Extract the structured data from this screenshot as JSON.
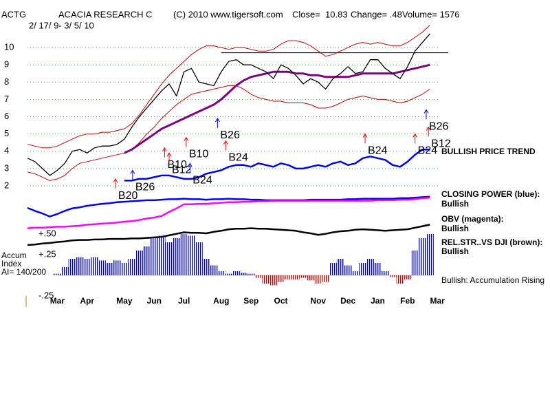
{
  "chart_data": {
    "type": "line",
    "header": {
      "symbol": "ACTG",
      "name": "ACACIA RESEARCH C",
      "copyright": "(C) 2010 www.tigersoft.com",
      "close": "Close=  10.83",
      "change": "Change= .48",
      "volume": "Volume= 1576",
      "dates": "2/ 17/ 9- 3/ 5/ 10"
    },
    "categories": [
      null,
      null,
      null,
      null,
      "Mar",
      null,
      null,
      null,
      "Apr",
      null,
      null,
      null,
      null,
      "May",
      null,
      null,
      null,
      "Jun",
      null,
      null,
      null,
      "Jul",
      null,
      null,
      null,
      null,
      "Aug",
      null,
      null,
      null,
      "Sep",
      null,
      null,
      null,
      "Oct",
      null,
      null,
      null,
      null,
      "Nov",
      null,
      null,
      null,
      "Dec",
      null,
      null,
      null,
      "Jan",
      null,
      null,
      null,
      "Feb",
      null,
      null,
      null,
      "Mar"
    ],
    "ylim": [
      1.6,
      11.4
    ],
    "yticks": [
      2,
      3,
      4,
      5,
      6,
      7,
      8,
      9,
      10
    ],
    "grid": true,
    "resistance": 9.7,
    "series": [
      {
        "color": "#cc0000",
        "width": 1,
        "values": [
          4.4,
          4.3,
          4.2,
          4.2,
          4.3,
          4.5,
          4.7,
          4.9,
          5.0,
          5.0,
          5.1,
          5.1,
          5.2,
          5.3,
          5.6,
          6.1,
          6.7,
          7.3,
          7.9,
          8.4,
          8.8,
          9.2,
          9.6,
          9.9,
          10.1,
          10.1,
          10.0,
          9.9,
          10.0,
          10.0,
          9.9,
          9.8,
          9.8,
          9.9,
          10.2,
          10.4,
          10.4,
          10.3,
          10.1,
          9.8,
          9.5,
          9.6,
          9.8,
          10.0,
          10.2,
          10.3,
          10.2,
          10.3,
          10.2,
          10.1,
          10.1,
          10.3,
          10.6,
          10.9,
          11.3,
          null
        ]
      },
      {
        "color": "#cc0000",
        "width": 1,
        "values": [
          2.8,
          2.7,
          2.5,
          2.3,
          2.4,
          2.6,
          3.0,
          3.3,
          3.4,
          3.5,
          3.6,
          3.7,
          3.8,
          3.9,
          4.1,
          4.5,
          5.0,
          5.4,
          5.9,
          6.3,
          6.7,
          7.0,
          7.3,
          7.4,
          7.5,
          7.6,
          7.7,
          7.8,
          7.8,
          7.6,
          7.3,
          7.1,
          7.0,
          6.9,
          6.9,
          6.8,
          6.8,
          6.8,
          6.7,
          6.5,
          6.5,
          6.6,
          6.8,
          7.0,
          7.1,
          7.2,
          7.1,
          7.0,
          7.0,
          6.9,
          6.8,
          6.9,
          7.1,
          7.3,
          7.6,
          null
        ]
      },
      {
        "color": "#800080",
        "width": 3,
        "values": [
          null,
          null,
          null,
          null,
          null,
          null,
          null,
          null,
          null,
          null,
          null,
          null,
          null,
          3.9,
          4.1,
          4.4,
          4.7,
          5.0,
          5.3,
          5.5,
          5.7,
          5.9,
          6.1,
          6.3,
          6.5,
          6.7,
          7.0,
          7.4,
          7.8,
          8.1,
          8.3,
          8.4,
          8.5,
          8.6,
          8.6,
          8.6,
          8.5,
          8.5,
          8.4,
          8.4,
          8.3,
          8.3,
          8.3,
          8.3,
          8.4,
          8.5,
          8.5,
          8.5,
          8.5,
          8.5,
          8.6,
          8.7,
          8.8,
          8.9,
          9.0,
          null
        ]
      },
      {
        "color": "#0000ff",
        "width": 2.5,
        "values": [
          null,
          null,
          null,
          null,
          null,
          null,
          null,
          null,
          null,
          null,
          null,
          null,
          null,
          2.3,
          2.3,
          2.4,
          2.4,
          2.5,
          2.6,
          2.6,
          2.5,
          2.4,
          2.4,
          2.5,
          2.7,
          2.8,
          2.9,
          3.1,
          3.2,
          3.2,
          3.1,
          3.3,
          3.2,
          3.1,
          3.3,
          3.2,
          3.0,
          3.0,
          3.1,
          3.2,
          3.1,
          3.3,
          3.4,
          3.2,
          3.3,
          3.6,
          3.7,
          3.6,
          3.5,
          3.2,
          3.1,
          3.4,
          3.8,
          4.1,
          4.1,
          null
        ]
      },
      {
        "color": "#000000",
        "width": 1.3,
        "values": [
          3.6,
          3.4,
          3.0,
          2.6,
          2.9,
          3.3,
          4.0,
          4.1,
          3.9,
          4.2,
          4.3,
          4.3,
          4.4,
          4.7,
          5.4,
          6.0,
          6.5,
          7.0,
          7.5,
          7.9,
          7.2,
          8.6,
          8.8,
          8.0,
          7.9,
          7.8,
          8.6,
          9.2,
          9.3,
          9.0,
          9.0,
          8.8,
          8.6,
          8.2,
          9.0,
          8.8,
          8.4,
          7.9,
          8.2,
          8.0,
          7.6,
          8.2,
          8.5,
          8.9,
          8.5,
          8.6,
          9.3,
          9.3,
          8.8,
          8.5,
          8.2,
          8.9,
          9.8,
          10.3,
          10.8,
          null
        ]
      }
    ],
    "signals": [
      {
        "label": "B20",
        "week": 11.8,
        "price": 2.4,
        "color": "#ff0000"
      },
      {
        "label": "B26",
        "week": 14.1,
        "price": 2.9,
        "color": "#0000ff"
      },
      {
        "label": "B10",
        "week": 18.4,
        "price": 4.2,
        "color": "#ff0000"
      },
      {
        "label": "B12",
        "week": 19.0,
        "price": 3.9,
        "color": "#ff0000"
      },
      {
        "label": "B10",
        "week": 21.3,
        "price": 4.8,
        "color": "#ff0000"
      },
      {
        "label": "B24",
        "week": 21.8,
        "price": 3.3,
        "color": "#0000ff"
      },
      {
        "label": "B26",
        "week": 25.5,
        "price": 5.9,
        "color": "#0000ff"
      },
      {
        "label": "B24",
        "week": 26.6,
        "price": 4.6,
        "color": "#ff0000"
      },
      {
        "label": "B24",
        "week": 45.3,
        "price": 5.0,
        "color": "#ff0000"
      },
      {
        "label": "B24",
        "week": 52.0,
        "price": 5.0,
        "color": "#ff0000"
      },
      {
        "label": "B26",
        "week": 53.5,
        "price": 6.4,
        "color": "#0000ff"
      },
      {
        "label": "B12",
        "week": 53.8,
        "price": 5.4,
        "color": "#ff0000"
      }
    ],
    "annotations": [
      "BULLISH PRICE TREND",
      "CLOSING POWER (blue):",
      "Bullish",
      "OBV (magenta):",
      "Bullish",
      "REL.STR..VS DJI (brown):",
      "Bullish",
      "Bullish: Accumulation Rising"
    ],
    "indicators": {
      "ylim": [
        0,
        100
      ],
      "series": [
        {
          "color": "#0000ff",
          "width": 2.5,
          "values": [
            73,
            67,
            62,
            56,
            61,
            67,
            72,
            74,
            77,
            79,
            81,
            82,
            84,
            85,
            86,
            87,
            88,
            88,
            89,
            90,
            90,
            91,
            90,
            90,
            89,
            90,
            90,
            91,
            90,
            90,
            89,
            89,
            88,
            88,
            88,
            88,
            88,
            88,
            89,
            89,
            89,
            89,
            89,
            90,
            90,
            91,
            91,
            91,
            91,
            91,
            92,
            92,
            93,
            94,
            95,
            null
          ]
        },
        {
          "color": "#ff00ff",
          "width": 2.5,
          "values": [
            33,
            34,
            34,
            35,
            36,
            36,
            37,
            38,
            40,
            41,
            42,
            43,
            44,
            46,
            47,
            49,
            52,
            54,
            57,
            65,
            72,
            80,
            80,
            81,
            81,
            82,
            83,
            84,
            84,
            85,
            85,
            86,
            86,
            87,
            87,
            87,
            87,
            87,
            87,
            87,
            87,
            87,
            87,
            87,
            87,
            87,
            87,
            88,
            88,
            88,
            89,
            89,
            90,
            92,
            93,
            null
          ]
        },
        {
          "color": "#000000",
          "width": 2.5,
          "values": [
            0,
            1,
            3,
            4,
            6,
            7,
            9,
            10,
            10,
            11,
            11,
            12,
            12,
            12,
            13,
            13,
            14,
            15,
            16,
            19,
            22,
            25,
            24,
            24,
            23,
            26,
            28,
            31,
            32,
            32,
            33,
            32,
            32,
            31,
            30,
            29,
            28,
            25,
            23,
            20,
            22,
            25,
            27,
            28,
            30,
            31,
            30,
            29,
            28,
            29,
            30,
            31,
            34,
            37,
            40,
            null
          ]
        }
      ]
    },
    "accum": {
      "type": "bar",
      "labels": [
        "Accum",
        "Index",
        "AI= 140/200"
      ],
      "ylim": [
        -0.25,
        0.5
      ],
      "yticks": [
        {
          "value": 0.5,
          "label": "+.50"
        },
        {
          "value": 0.25,
          "label": "+.25"
        },
        {
          "value": -0.25,
          "label": "-.25"
        }
      ],
      "positive_color": "#0000cc",
      "negative_color": "#cc0000",
      "values": [
        null,
        null,
        null,
        null,
        0.02,
        0.1,
        0.2,
        0.22,
        0.2,
        0.22,
        0.18,
        0.15,
        0.18,
        0.15,
        0.2,
        0.3,
        0.35,
        0.45,
        0.48,
        0.4,
        0.45,
        0.5,
        0.48,
        0.4,
        0.2,
        0.12,
        0.05,
        0.02,
        0.05,
        0.03,
        0.02,
        -0.03,
        -0.1,
        -0.12,
        -0.08,
        -0.05,
        -0.05,
        -0.03,
        -0.06,
        -0.1,
        -0.08,
        0.15,
        0.2,
        0.12,
        0.05,
        0.15,
        0.2,
        0.15,
        0.05,
        -0.02,
        -0.1,
        -0.05,
        0.3,
        0.45,
        0.5,
        null
      ]
    }
  }
}
